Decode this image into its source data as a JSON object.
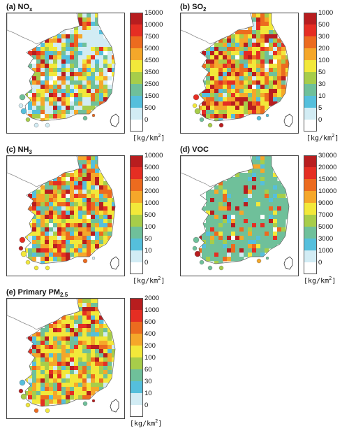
{
  "unit": {
    "text": "[kg/km",
    "exp": "2",
    "close": "]"
  },
  "colors": [
    "#ffffff",
    "#d2ecf4",
    "#55bfdc",
    "#6fc09a",
    "#a7cd4a",
    "#f2e83a",
    "#f5a72a",
    "#ec6b1f",
    "#e52e23",
    "#b81d1f"
  ],
  "panels": [
    {
      "title": "(a) NO",
      "sub": "x",
      "ticks": [
        "15000",
        "10000",
        "7500",
        "5000",
        "4500",
        "3500",
        "2500",
        "1500",
        "500",
        "0"
      ],
      "mix": [
        0.04,
        0.16,
        0.1,
        0.14,
        0.11,
        0.13,
        0.1,
        0.1,
        0.07,
        0.15
      ]
    },
    {
      "title": "(b) SO",
      "sub": "2",
      "ticks": [
        "1000",
        "500",
        "300",
        "200",
        "100",
        "50",
        "30",
        "10",
        "5",
        "0"
      ],
      "mix": [
        0.01,
        0.02,
        0.04,
        0.08,
        0.16,
        0.18,
        0.14,
        0.14,
        0.1,
        0.13
      ]
    },
    {
      "title": "(c) NH",
      "sub": "3",
      "ticks": [
        "10000",
        "5000",
        "3000",
        "2000",
        "1000",
        "500",
        "100",
        "50",
        "10",
        "0"
      ],
      "mix": [
        0.02,
        0.02,
        0.1,
        0.12,
        0.08,
        0.22,
        0.16,
        0.12,
        0.06,
        0.1
      ]
    },
    {
      "title": "(d) VOC",
      "sub": "",
      "ticks": [
        "30000",
        "20000",
        "15000",
        "10000",
        "9000",
        "7000",
        "5000",
        "3000",
        "1000",
        "0"
      ],
      "mix": [
        0.01,
        0.02,
        0.08,
        0.58,
        0.08,
        0.05,
        0.06,
        0.04,
        0.03,
        0.05
      ]
    },
    {
      "title": "(e) Primary PM",
      "sub": "2.5",
      "ticks": [
        "2000",
        "1000",
        "600",
        "400",
        "200",
        "100",
        "60",
        "30",
        "10",
        "0"
      ],
      "mix": [
        0.01,
        0.02,
        0.04,
        0.14,
        0.14,
        0.3,
        0.14,
        0.08,
        0.05,
        0.08
      ]
    }
  ]
}
